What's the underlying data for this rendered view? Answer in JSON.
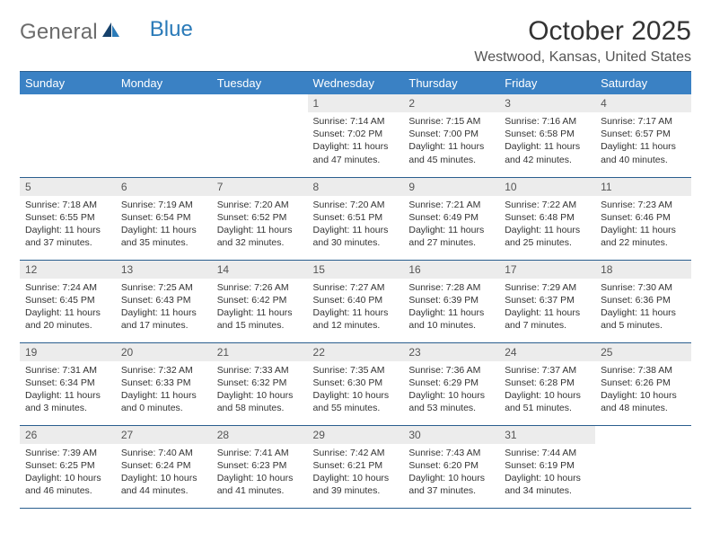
{
  "brand": {
    "part1": "General",
    "part2": "Blue"
  },
  "title": "October 2025",
  "location": "Westwood, Kansas, United States",
  "colors": {
    "header_bg": "#3a81c4",
    "header_border": "#2a5e8e",
    "daynum_bg": "#ececec",
    "text": "#333333",
    "brand_gray": "#6c6c6c",
    "brand_blue": "#2a7ab8"
  },
  "typography": {
    "title_size_pt": 22,
    "body_size_pt": 8
  },
  "weekdays": [
    "Sunday",
    "Monday",
    "Tuesday",
    "Wednesday",
    "Thursday",
    "Friday",
    "Saturday"
  ],
  "weeks": [
    [
      null,
      null,
      null,
      {
        "d": "1",
        "sr": "Sunrise: 7:14 AM",
        "ss": "Sunset: 7:02 PM",
        "dl1": "Daylight: 11 hours",
        "dl2": "and 47 minutes."
      },
      {
        "d": "2",
        "sr": "Sunrise: 7:15 AM",
        "ss": "Sunset: 7:00 PM",
        "dl1": "Daylight: 11 hours",
        "dl2": "and 45 minutes."
      },
      {
        "d": "3",
        "sr": "Sunrise: 7:16 AM",
        "ss": "Sunset: 6:58 PM",
        "dl1": "Daylight: 11 hours",
        "dl2": "and 42 minutes."
      },
      {
        "d": "4",
        "sr": "Sunrise: 7:17 AM",
        "ss": "Sunset: 6:57 PM",
        "dl1": "Daylight: 11 hours",
        "dl2": "and 40 minutes."
      }
    ],
    [
      {
        "d": "5",
        "sr": "Sunrise: 7:18 AM",
        "ss": "Sunset: 6:55 PM",
        "dl1": "Daylight: 11 hours",
        "dl2": "and 37 minutes."
      },
      {
        "d": "6",
        "sr": "Sunrise: 7:19 AM",
        "ss": "Sunset: 6:54 PM",
        "dl1": "Daylight: 11 hours",
        "dl2": "and 35 minutes."
      },
      {
        "d": "7",
        "sr": "Sunrise: 7:20 AM",
        "ss": "Sunset: 6:52 PM",
        "dl1": "Daylight: 11 hours",
        "dl2": "and 32 minutes."
      },
      {
        "d": "8",
        "sr": "Sunrise: 7:20 AM",
        "ss": "Sunset: 6:51 PM",
        "dl1": "Daylight: 11 hours",
        "dl2": "and 30 minutes."
      },
      {
        "d": "9",
        "sr": "Sunrise: 7:21 AM",
        "ss": "Sunset: 6:49 PM",
        "dl1": "Daylight: 11 hours",
        "dl2": "and 27 minutes."
      },
      {
        "d": "10",
        "sr": "Sunrise: 7:22 AM",
        "ss": "Sunset: 6:48 PM",
        "dl1": "Daylight: 11 hours",
        "dl2": "and 25 minutes."
      },
      {
        "d": "11",
        "sr": "Sunrise: 7:23 AM",
        "ss": "Sunset: 6:46 PM",
        "dl1": "Daylight: 11 hours",
        "dl2": "and 22 minutes."
      }
    ],
    [
      {
        "d": "12",
        "sr": "Sunrise: 7:24 AM",
        "ss": "Sunset: 6:45 PM",
        "dl1": "Daylight: 11 hours",
        "dl2": "and 20 minutes."
      },
      {
        "d": "13",
        "sr": "Sunrise: 7:25 AM",
        "ss": "Sunset: 6:43 PM",
        "dl1": "Daylight: 11 hours",
        "dl2": "and 17 minutes."
      },
      {
        "d": "14",
        "sr": "Sunrise: 7:26 AM",
        "ss": "Sunset: 6:42 PM",
        "dl1": "Daylight: 11 hours",
        "dl2": "and 15 minutes."
      },
      {
        "d": "15",
        "sr": "Sunrise: 7:27 AM",
        "ss": "Sunset: 6:40 PM",
        "dl1": "Daylight: 11 hours",
        "dl2": "and 12 minutes."
      },
      {
        "d": "16",
        "sr": "Sunrise: 7:28 AM",
        "ss": "Sunset: 6:39 PM",
        "dl1": "Daylight: 11 hours",
        "dl2": "and 10 minutes."
      },
      {
        "d": "17",
        "sr": "Sunrise: 7:29 AM",
        "ss": "Sunset: 6:37 PM",
        "dl1": "Daylight: 11 hours",
        "dl2": "and 7 minutes."
      },
      {
        "d": "18",
        "sr": "Sunrise: 7:30 AM",
        "ss": "Sunset: 6:36 PM",
        "dl1": "Daylight: 11 hours",
        "dl2": "and 5 minutes."
      }
    ],
    [
      {
        "d": "19",
        "sr": "Sunrise: 7:31 AM",
        "ss": "Sunset: 6:34 PM",
        "dl1": "Daylight: 11 hours",
        "dl2": "and 3 minutes."
      },
      {
        "d": "20",
        "sr": "Sunrise: 7:32 AM",
        "ss": "Sunset: 6:33 PM",
        "dl1": "Daylight: 11 hours",
        "dl2": "and 0 minutes."
      },
      {
        "d": "21",
        "sr": "Sunrise: 7:33 AM",
        "ss": "Sunset: 6:32 PM",
        "dl1": "Daylight: 10 hours",
        "dl2": "and 58 minutes."
      },
      {
        "d": "22",
        "sr": "Sunrise: 7:35 AM",
        "ss": "Sunset: 6:30 PM",
        "dl1": "Daylight: 10 hours",
        "dl2": "and 55 minutes."
      },
      {
        "d": "23",
        "sr": "Sunrise: 7:36 AM",
        "ss": "Sunset: 6:29 PM",
        "dl1": "Daylight: 10 hours",
        "dl2": "and 53 minutes."
      },
      {
        "d": "24",
        "sr": "Sunrise: 7:37 AM",
        "ss": "Sunset: 6:28 PM",
        "dl1": "Daylight: 10 hours",
        "dl2": "and 51 minutes."
      },
      {
        "d": "25",
        "sr": "Sunrise: 7:38 AM",
        "ss": "Sunset: 6:26 PM",
        "dl1": "Daylight: 10 hours",
        "dl2": "and 48 minutes."
      }
    ],
    [
      {
        "d": "26",
        "sr": "Sunrise: 7:39 AM",
        "ss": "Sunset: 6:25 PM",
        "dl1": "Daylight: 10 hours",
        "dl2": "and 46 minutes."
      },
      {
        "d": "27",
        "sr": "Sunrise: 7:40 AM",
        "ss": "Sunset: 6:24 PM",
        "dl1": "Daylight: 10 hours",
        "dl2": "and 44 minutes."
      },
      {
        "d": "28",
        "sr": "Sunrise: 7:41 AM",
        "ss": "Sunset: 6:23 PM",
        "dl1": "Daylight: 10 hours",
        "dl2": "and 41 minutes."
      },
      {
        "d": "29",
        "sr": "Sunrise: 7:42 AM",
        "ss": "Sunset: 6:21 PM",
        "dl1": "Daylight: 10 hours",
        "dl2": "and 39 minutes."
      },
      {
        "d": "30",
        "sr": "Sunrise: 7:43 AM",
        "ss": "Sunset: 6:20 PM",
        "dl1": "Daylight: 10 hours",
        "dl2": "and 37 minutes."
      },
      {
        "d": "31",
        "sr": "Sunrise: 7:44 AM",
        "ss": "Sunset: 6:19 PM",
        "dl1": "Daylight: 10 hours",
        "dl2": "and 34 minutes."
      },
      null
    ]
  ]
}
